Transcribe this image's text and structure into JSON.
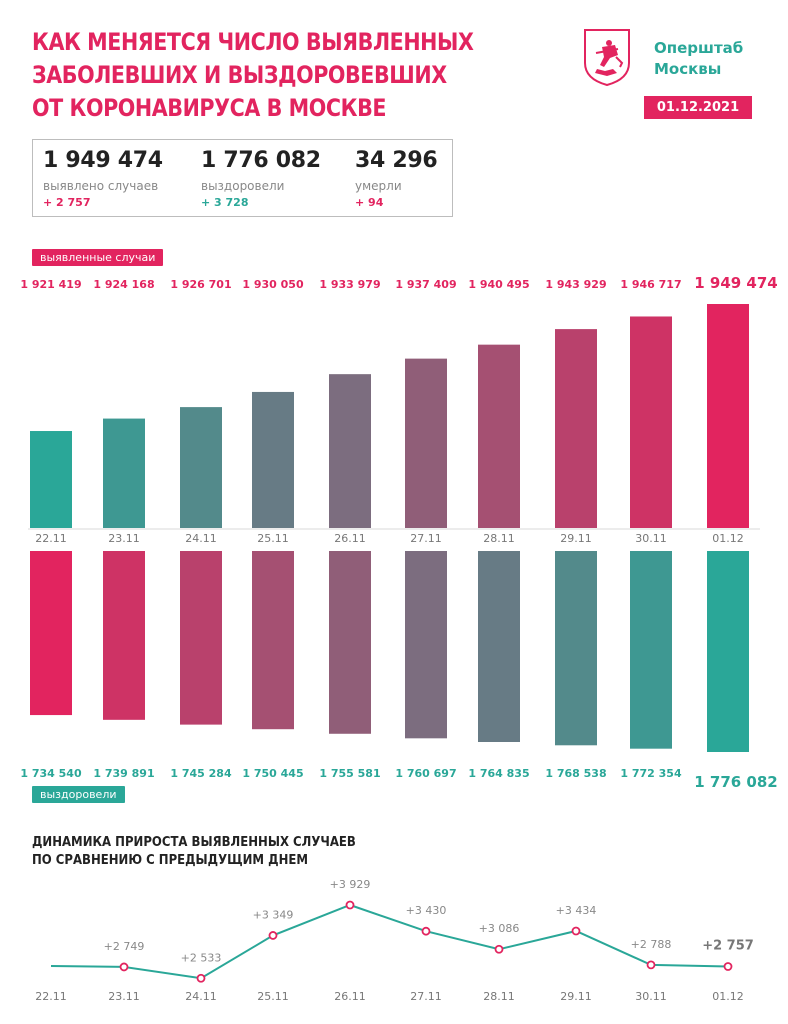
{
  "header": {
    "title_lines": [
      "КАК МЕНЯЕТСЯ ЧИСЛО ВЫЯВЛЕННЫХ",
      "ЗАБОЛЕВШИХ И ВЫЗДОРОВЕВШИХ",
      "ОТ КОРОНАВИРУСА В МОСКВЕ"
    ],
    "brand_lines": [
      "Оперштаб",
      "Москвы"
    ],
    "date": "01.12.2021",
    "logo_icon": "moscow-coat-of-arms-icon"
  },
  "stats": [
    {
      "value": "1 949 474",
      "label": "выявлено случаев",
      "delta": "+ 2 757",
      "delta_color": "#e2245f"
    },
    {
      "value": "1 776 082",
      "label": "выздоровели",
      "delta": "+ 3 728",
      "delta_color": "#2aa798"
    },
    {
      "value": "34 296",
      "label": "умерли",
      "delta": "+ 94",
      "delta_color": "#e2245f"
    }
  ],
  "colors": {
    "accent_red": "#e2245f",
    "accent_teal": "#2aa798",
    "text_dark": "#222222"
  },
  "chart_data": [
    {
      "type": "bar",
      "legend_label": "выявленные случаи",
      "categories": [
        "22.11",
        "23.11",
        "24.11",
        "25.11",
        "26.11",
        "27.11",
        "28.11",
        "29.11",
        "30.11",
        "01.12"
      ],
      "values": [
        1921419,
        1924168,
        1926701,
        1930050,
        1933979,
        1937409,
        1940495,
        1943929,
        1946717,
        1949474
      ],
      "value_labels": [
        "1 921 419",
        "1 924 168",
        "1 926 701",
        "1 930 050",
        "1 933 979",
        "1 937 409",
        "1 940 495",
        "1 943 929",
        "1 946 717",
        "1 949 474"
      ],
      "color_gradient": [
        "#2aa798",
        "#e2245f"
      ]
    },
    {
      "type": "bar",
      "legend_label": "выздоровели",
      "categories": [
        "22.11",
        "23.11",
        "24.11",
        "25.11",
        "26.11",
        "27.11",
        "28.11",
        "29.11",
        "30.11",
        "01.12"
      ],
      "values": [
        1734540,
        1739891,
        1745284,
        1750445,
        1755581,
        1760697,
        1764835,
        1768538,
        1772354,
        1776082
      ],
      "value_labels": [
        "1 734 540",
        "1 739 891",
        "1 745 284",
        "1 750 445",
        "1 755 581",
        "1 760 697",
        "1 764 835",
        "1 768 538",
        "1 772 354",
        "1 776 082"
      ],
      "color_gradient": [
        "#e2245f",
        "#2aa798"
      ]
    },
    {
      "type": "line",
      "title_lines": [
        "ДИНАМИКА ПРИРОСТА ВЫЯВЛЕННЫХ СЛУЧАЕВ",
        "ПО СРАВНЕНИЮ С ПРЕДЫДУЩИМ ДНЕМ"
      ],
      "categories": [
        "22.11",
        "23.11",
        "24.11",
        "25.11",
        "26.11",
        "27.11",
        "28.11",
        "29.11",
        "30.11",
        "01.12"
      ],
      "values": [
        null,
        2749,
        2533,
        3349,
        3929,
        3430,
        3086,
        3434,
        2788,
        2757
      ],
      "value_labels": [
        "",
        "+2 749",
        "+2 533",
        "+3 349",
        "+3 929",
        "+3 430",
        "+3 086",
        "+3 434",
        "+2 788",
        "+2 757"
      ],
      "line_color": "#2aa798",
      "marker_color": "#e2245f"
    }
  ]
}
